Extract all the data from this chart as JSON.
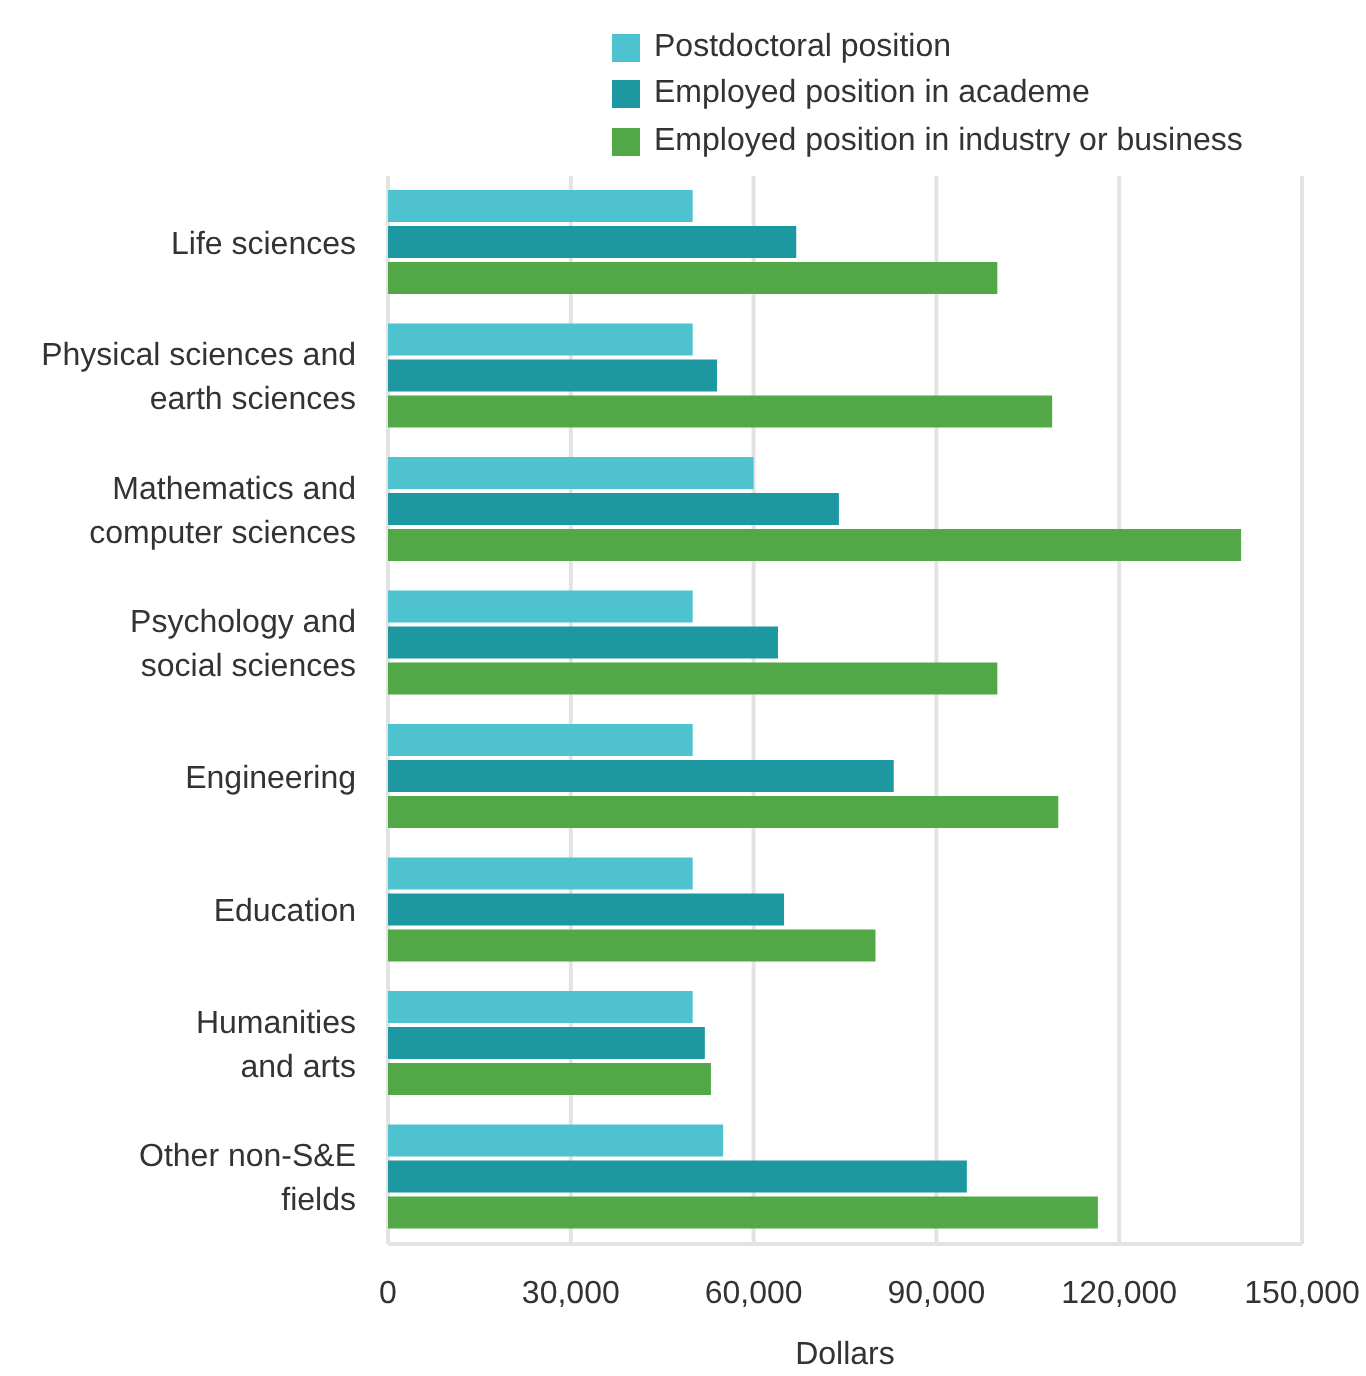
{
  "chart_data": {
    "type": "bar",
    "orientation": "horizontal",
    "xlabel": "Dollars",
    "categories": [
      "Life sciences",
      "Physical sciences and\nearth sciences",
      "Mathematics and\ncomputer sciences",
      "Psychology and\nsocial sciences",
      "Engineering",
      "Education",
      "Humanities\nand arts",
      "Other non-S&E\nfields"
    ],
    "series": [
      {
        "name": "Postdoctoral position",
        "color": "#4ec3cf",
        "values": [
          50000,
          50000,
          60000,
          50000,
          50000,
          50000,
          50000,
          55000
        ]
      },
      {
        "name": "Employed position in academe",
        "color": "#1d98a0",
        "values": [
          67000,
          54000,
          74000,
          64000,
          83000,
          65000,
          52000,
          95000
        ]
      },
      {
        "name": "Employed position in industry or business",
        "color": "#52a846",
        "values": [
          100000,
          109000,
          140000,
          100000,
          110000,
          80000,
          53000,
          116500
        ]
      }
    ],
    "xlim": [
      0,
      150000
    ],
    "xticks": [
      0,
      {
        "value": 30000,
        "label": "30,000"
      },
      {
        "value": 60000,
        "label": "60,000"
      },
      {
        "value": 90000,
        "label": "90,000"
      },
      {
        "value": 120000,
        "label": "120,000"
      },
      {
        "value": 150000,
        "label": "150,000"
      }
    ],
    "grid": "x",
    "legend": "top"
  }
}
